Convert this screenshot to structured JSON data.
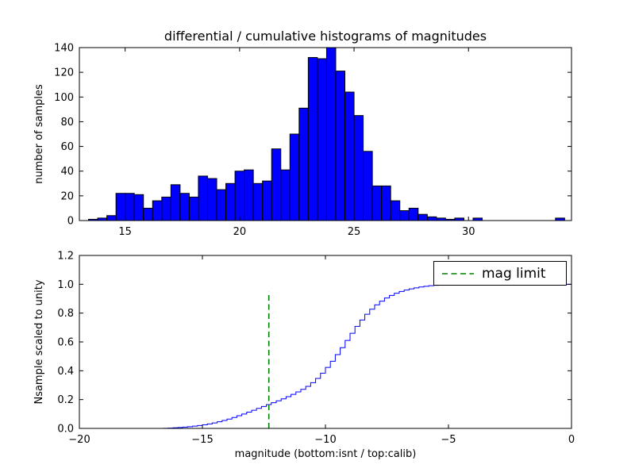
{
  "chart_data": [
    {
      "type": "bar",
      "subplot": "top",
      "title": "differential / cumulative histograms of magnitudes",
      "ylabel": "number of samples",
      "xlim": [
        13.0,
        34.5
      ],
      "ylim": [
        0,
        140
      ],
      "xticks": [
        15,
        20,
        25,
        30
      ],
      "xtick_labels": [
        "15",
        "20",
        "25",
        "30"
      ],
      "yticks": [
        0,
        20,
        40,
        60,
        80,
        100,
        120,
        140
      ],
      "ytick_labels": [
        "0",
        "20",
        "40",
        "60",
        "80",
        "100",
        "120",
        "140"
      ],
      "bin_start": 13.4,
      "bin_width": 0.4,
      "counts": [
        1,
        2,
        4,
        22,
        22,
        21,
        10,
        16,
        19,
        29,
        22,
        19,
        36,
        34,
        25,
        30,
        40,
        41,
        30,
        32,
        58,
        41,
        70,
        91,
        132,
        131,
        140,
        121,
        104,
        85,
        56,
        28,
        28,
        16,
        8,
        10,
        5,
        3,
        2,
        1,
        2,
        0,
        2,
        0,
        0,
        0,
        0,
        0,
        0,
        0,
        0,
        2
      ],
      "bar_color": "#0000ff",
      "bar_edge_color": "#000000",
      "grid": false
    },
    {
      "type": "line",
      "subplot": "bottom",
      "style": "steps-post",
      "ylabel": "Nsample scaled to unity",
      "xlabel": "magnitude (bottom:isnt / top:calib)",
      "xlim": [
        -20,
        0
      ],
      "ylim": [
        0,
        1.2
      ],
      "xticks": [
        -20,
        -15,
        -10,
        -5,
        0
      ],
      "xtick_labels": [
        "−20",
        "−15",
        "−10",
        "−5",
        "0"
      ],
      "yticks": [
        0,
        0.2,
        0.4,
        0.6,
        0.8,
        1.0,
        1.2
      ],
      "ytick_labels": [
        "0.0",
        "0.2",
        "0.4",
        "0.6",
        "0.8",
        "1.0",
        "1.2"
      ],
      "line_color": "#0000ff",
      "x": [
        -20.0,
        -16.6,
        -16.4,
        -16.2,
        -16.0,
        -15.8,
        -15.6,
        -15.4,
        -15.2,
        -15.0,
        -14.8,
        -14.6,
        -14.4,
        -14.2,
        -14.0,
        -13.8,
        -13.6,
        -13.4,
        -13.2,
        -13.0,
        -12.8,
        -12.6,
        -12.4,
        -12.2,
        -12.0,
        -11.8,
        -11.6,
        -11.4,
        -11.2,
        -11.0,
        -10.8,
        -10.6,
        -10.4,
        -10.2,
        -10.0,
        -9.8,
        -9.6,
        -9.4,
        -9.2,
        -9.0,
        -8.8,
        -8.6,
        -8.4,
        -8.2,
        -8.0,
        -7.8,
        -7.6,
        -7.4,
        -7.2,
        -7.0,
        -6.8,
        -6.6,
        -6.4,
        -6.2,
        -6.0,
        -5.8,
        -5.6,
        -5.4,
        -5.2,
        -5.0,
        -4.8,
        -4.6,
        0.0
      ],
      "y": [
        0.0,
        0.001,
        0.002,
        0.004,
        0.006,
        0.009,
        0.012,
        0.016,
        0.02,
        0.025,
        0.031,
        0.038,
        0.046,
        0.055,
        0.065,
        0.076,
        0.088,
        0.1,
        0.113,
        0.126,
        0.139,
        0.152,
        0.165,
        0.178,
        0.191,
        0.205,
        0.22,
        0.236,
        0.253,
        0.271,
        0.292,
        0.317,
        0.347,
        0.383,
        0.423,
        0.466,
        0.512,
        0.56,
        0.61,
        0.66,
        0.708,
        0.752,
        0.792,
        0.827,
        0.857,
        0.883,
        0.905,
        0.923,
        0.938,
        0.95,
        0.96,
        0.968,
        0.975,
        0.981,
        0.986,
        0.99,
        0.993,
        0.995,
        0.997,
        0.998,
        0.999,
        1.0,
        1.0
      ],
      "mag_limit": {
        "x": -12.3,
        "y0": 0.0,
        "y1": 0.95
      },
      "legend": {
        "label": "mag limit",
        "color": "#008000",
        "linestyle": "dashed",
        "position": "upper right"
      },
      "grid": false
    }
  ]
}
